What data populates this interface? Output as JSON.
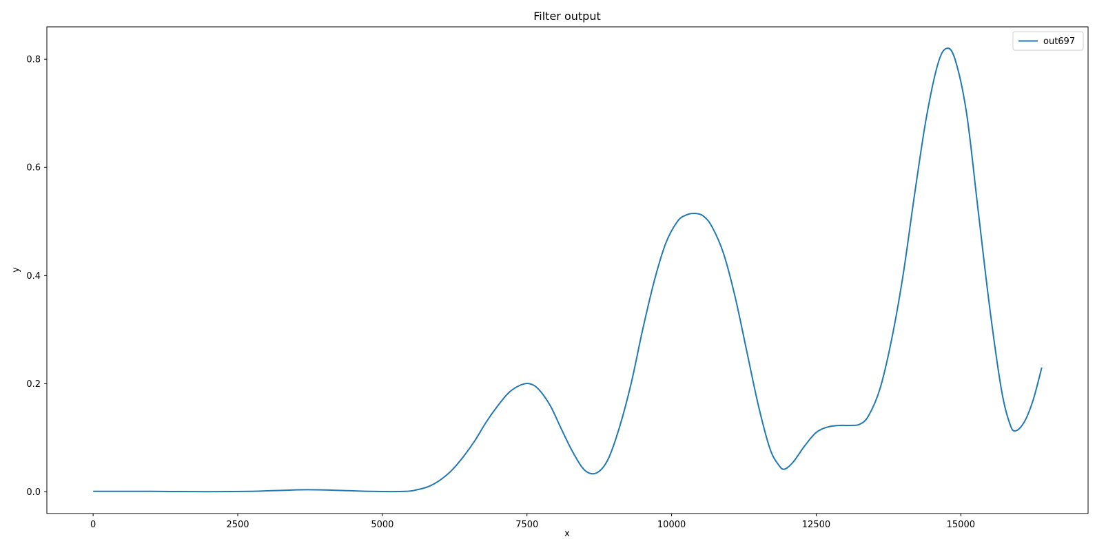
{
  "chart_data": {
    "type": "line",
    "title": "Filter output",
    "xlabel": "x",
    "ylabel": "y",
    "xlim": [
      -800,
      17200
    ],
    "ylim": [
      -0.04,
      0.86
    ],
    "xticks": [
      0,
      2500,
      5000,
      7500,
      10000,
      12500,
      15000
    ],
    "xtick_labels": [
      "0",
      "2500",
      "5000",
      "7500",
      "10000",
      "12500",
      "15000"
    ],
    "yticks": [
      0.0,
      0.2,
      0.4,
      0.6,
      0.8
    ],
    "ytick_labels": [
      "0.0",
      "0.2",
      "0.4",
      "0.6",
      "0.8"
    ],
    "grid": false,
    "legend_position": "top-right",
    "series": [
      {
        "name": "out697",
        "color": "#1f77b4",
        "x": [
          0,
          1000,
          2000,
          2700,
          3300,
          3700,
          4200,
          4800,
          5400,
          5600,
          5800,
          6000,
          6200,
          6400,
          6600,
          6800,
          7000,
          7200,
          7400,
          7550,
          7700,
          7900,
          8100,
          8300,
          8500,
          8700,
          8900,
          9100,
          9300,
          9500,
          9700,
          9900,
          10100,
          10250,
          10400,
          10550,
          10700,
          10900,
          11100,
          11300,
          11500,
          11700,
          11850,
          11950,
          12100,
          12300,
          12500,
          12700,
          12900,
          13100,
          13250,
          13400,
          13600,
          13800,
          14000,
          14200,
          14400,
          14600,
          14750,
          14900,
          15100,
          15300,
          15500,
          15700,
          15850,
          15950,
          16100,
          16250,
          16400
        ],
        "y": [
          0.001,
          0.001,
          0.0005,
          0.001,
          0.003,
          0.004,
          0.003,
          0.001,
          0.001,
          0.004,
          0.01,
          0.022,
          0.04,
          0.065,
          0.095,
          0.13,
          0.16,
          0.185,
          0.198,
          0.2,
          0.19,
          0.16,
          0.115,
          0.072,
          0.04,
          0.035,
          0.06,
          0.12,
          0.2,
          0.3,
          0.39,
          0.46,
          0.5,
          0.512,
          0.515,
          0.51,
          0.49,
          0.44,
          0.36,
          0.26,
          0.16,
          0.08,
          0.05,
          0.042,
          0.055,
          0.085,
          0.11,
          0.12,
          0.123,
          0.123,
          0.125,
          0.14,
          0.19,
          0.28,
          0.4,
          0.55,
          0.69,
          0.79,
          0.82,
          0.8,
          0.7,
          0.52,
          0.34,
          0.19,
          0.125,
          0.113,
          0.13,
          0.17,
          0.23
        ]
      }
    ]
  }
}
